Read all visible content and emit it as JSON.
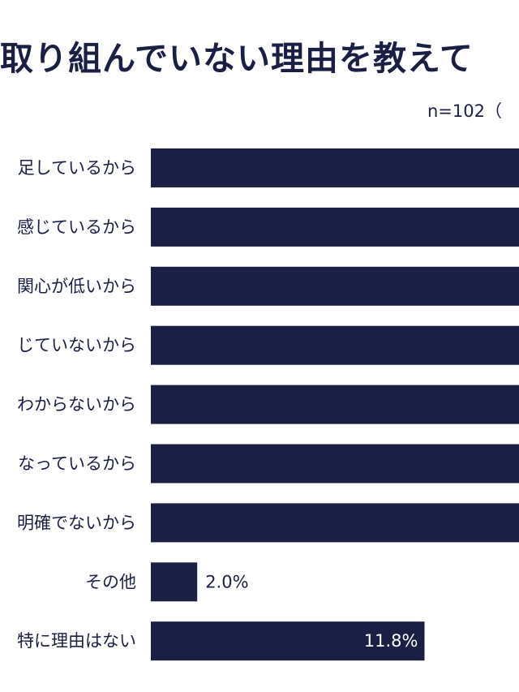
{
  "chart_data": {
    "type": "bar",
    "orientation": "horizontal",
    "title": "取り組んでいない理由を教えて",
    "note": "n=102（",
    "categories": [
      "足しているから",
      "感じているから",
      "関心が低いから",
      "じていないから",
      "わからないから",
      "なっているから",
      "明確でないから",
      "その他",
      "特に理由はない"
    ],
    "values": [
      null,
      null,
      null,
      null,
      null,
      null,
      null,
      2.0,
      11.8
    ],
    "value_labels": [
      "",
      "",
      "",
      "",
      "",
      "",
      "",
      "2.0%",
      "11.8%"
    ],
    "bar_color": "#1b1f44",
    "xlim": [
      0,
      40
    ]
  }
}
